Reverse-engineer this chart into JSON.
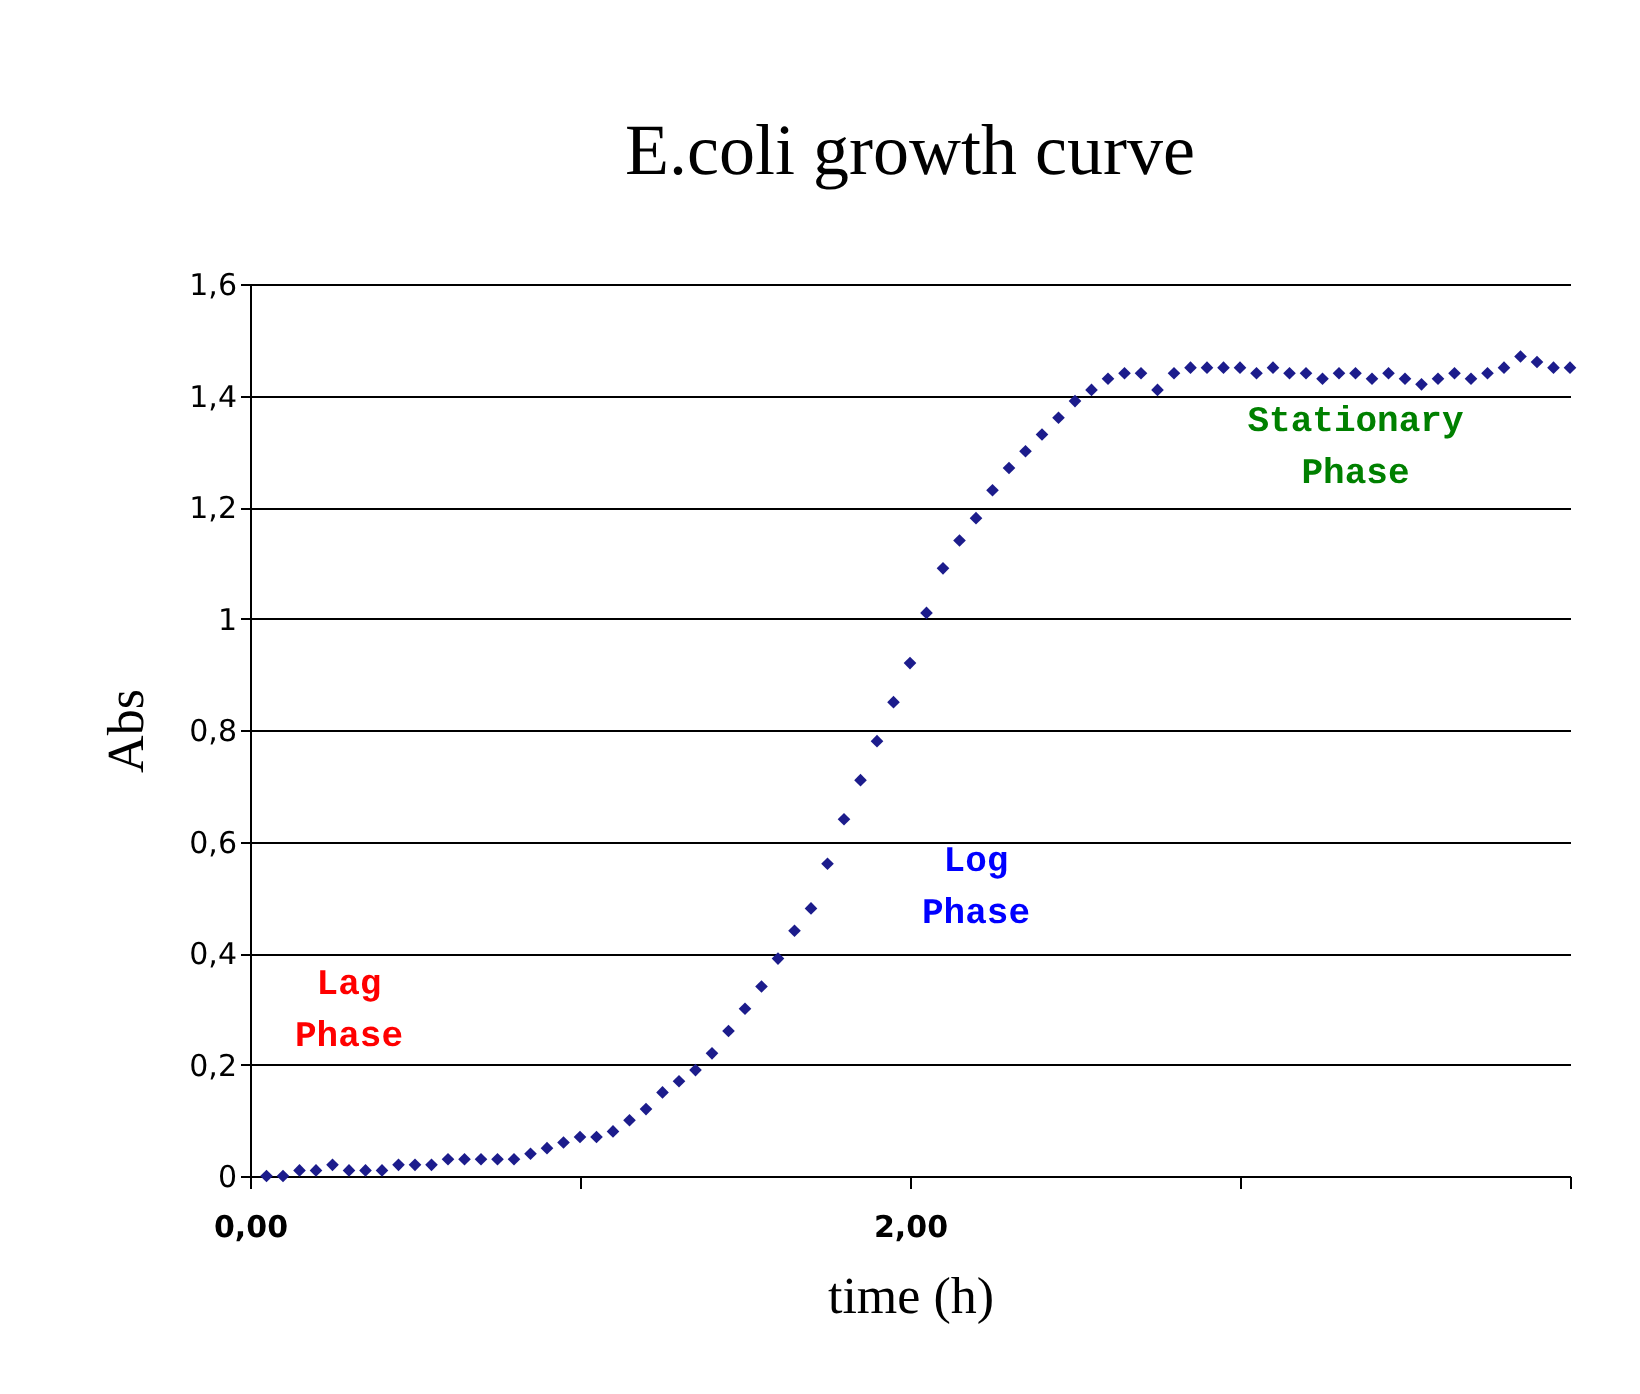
{
  "chart_data": {
    "type": "scatter",
    "title": "E.coli growth curve",
    "xlabel": "time (h)",
    "ylabel": "Abs",
    "x": [
      0.05,
      0.1,
      0.15,
      0.2,
      0.25,
      0.3,
      0.35,
      0.4,
      0.45,
      0.5,
      0.55,
      0.6,
      0.65,
      0.7,
      0.75,
      0.8,
      0.85,
      0.9,
      0.95,
      1.0,
      1.05,
      1.1,
      1.15,
      1.2,
      1.25,
      1.3,
      1.35,
      1.4,
      1.45,
      1.5,
      1.55,
      1.6,
      1.65,
      1.7,
      1.75,
      1.8,
      1.85,
      1.9,
      1.95,
      2.0,
      2.05,
      2.1,
      2.15,
      2.2,
      2.25,
      2.3,
      2.35,
      2.4,
      2.45,
      2.5,
      2.55,
      2.6,
      2.65,
      2.7,
      2.75,
      2.8,
      2.85,
      2.9,
      2.95,
      3.0,
      3.05,
      3.1,
      3.15,
      3.2,
      3.25,
      3.3,
      3.35,
      3.4,
      3.45,
      3.5,
      3.55,
      3.6,
      3.65,
      3.7,
      3.75,
      3.8,
      3.85,
      3.9,
      3.95,
      4.0
    ],
    "series": [
      {
        "color": "#1c1c8c",
        "values": [
          0.0,
          0.0,
          0.01,
          0.01,
          0.02,
          0.01,
          0.01,
          0.01,
          0.02,
          0.02,
          0.02,
          0.03,
          0.03,
          0.03,
          0.03,
          0.03,
          0.04,
          0.05,
          0.06,
          0.07,
          0.07,
          0.08,
          0.1,
          0.12,
          0.15,
          0.17,
          0.19,
          0.22,
          0.26,
          0.3,
          0.34,
          0.39,
          0.44,
          0.48,
          0.56,
          0.64,
          0.71,
          0.78,
          0.85,
          0.92,
          1.01,
          1.09,
          1.14,
          1.18,
          1.23,
          1.27,
          1.3,
          1.33,
          1.36,
          1.39,
          1.41,
          1.43,
          1.44,
          1.44,
          1.41,
          1.44,
          1.45,
          1.45,
          1.45,
          1.45,
          1.44,
          1.45,
          1.44,
          1.44,
          1.43,
          1.44,
          1.44,
          1.43,
          1.44,
          1.43,
          1.42,
          1.43,
          1.44,
          1.43,
          1.44,
          1.45,
          1.47,
          1.46,
          1.45,
          1.45
        ]
      }
    ],
    "xlim": [
      0,
      4
    ],
    "xticks": [
      {
        "value": 0,
        "label": "0,00"
      },
      {
        "value": 1,
        "label": null
      },
      {
        "value": 2,
        "label": "2,00"
      },
      {
        "value": 3,
        "label": null
      },
      {
        "value": 4,
        "label": null
      }
    ],
    "ylim": [
      0,
      1.6
    ],
    "yticks": [
      "0",
      {
        "value": 0.2,
        "label": "0,2"
      },
      {
        "value": 0.4,
        "label": "0,4"
      },
      {
        "value": 0.6,
        "label": "0,6"
      },
      {
        "value": 0.8,
        "label": "0,8"
      },
      1,
      {
        "value": 1.2,
        "label": "1,2"
      },
      {
        "value": 1.4,
        "label": "1,4"
      },
      {
        "value": 1.6,
        "label": "1,6"
      }
    ],
    "grid": "y",
    "marker": "diamond",
    "annotations": [
      "Lag Phase",
      "Log Phase",
      "Stationary Phase"
    ]
  }
}
